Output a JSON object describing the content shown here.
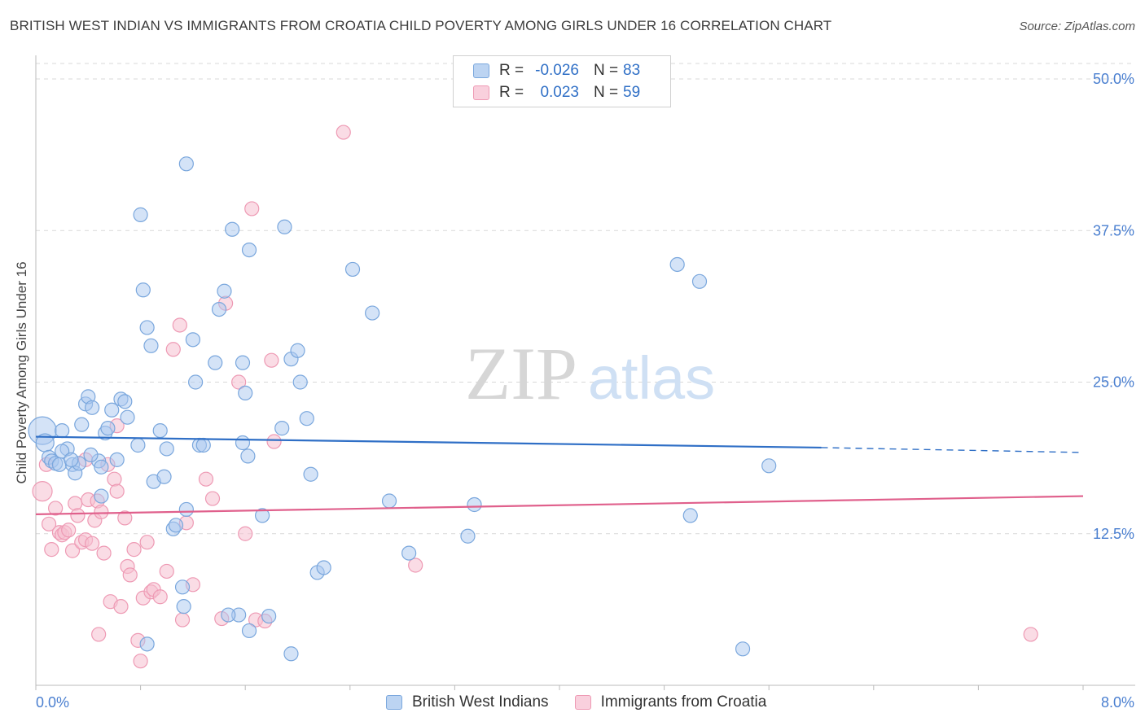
{
  "header": {
    "title": "BRITISH WEST INDIAN VS IMMIGRANTS FROM CROATIA CHILD POVERTY AMONG GIRLS UNDER 16 CORRELATION CHART",
    "source": "Source: ZipAtlas.com"
  },
  "watermark": {
    "zip": "ZIP",
    "atlas": "atlas"
  },
  "legend": {
    "rows": [
      {
        "r_label": "R =",
        "r_value": "-0.026",
        "n_label": "N =",
        "n_value": "83"
      },
      {
        "r_label": "R =",
        "r_value": "0.023",
        "n_label": "N =",
        "n_value": "59"
      }
    ]
  },
  "bottom_legend": {
    "series1": "British West Indians",
    "series2": "Immigrants from Croatia"
  },
  "colors": {
    "blue_fill": "#a9c8ef",
    "blue_stroke": "#7aa7dd",
    "blue_line": "#2f6fc6",
    "pink_fill": "#f6bfd0",
    "pink_stroke": "#ee9ab4",
    "pink_line": "#e0608c",
    "tick_label": "#4a7fd0",
    "grid": "#d9d9d9",
    "axis_text": "#4a7fd0"
  },
  "chart_data": {
    "type": "scatter",
    "title": "BRITISH WEST INDIAN VS IMMIGRANTS FROM CROATIA CHILD POVERTY AMONG GIRLS UNDER 16 CORRELATION CHART",
    "xlabel": "",
    "ylabel": "Child Poverty Among Girls Under 16",
    "xlim": [
      0,
      8
    ],
    "ylim": [
      0,
      50
    ],
    "x_tick_labels": [
      "0.0%",
      "8.0%"
    ],
    "y_ticks": [
      12.5,
      25.0,
      37.5,
      50.0
    ],
    "y_tick_labels": [
      "12.5%",
      "25.0%",
      "37.5%",
      "50.0%"
    ],
    "grid": true,
    "legend_placement": "top-center",
    "series": [
      {
        "name": "British West Indians",
        "R": -0.026,
        "N": 83,
        "trend": {
          "x0": 0,
          "y0": 20.5,
          "x1": 6.0,
          "y1": 19.6,
          "x_dash_end": 8.0,
          "y_dash_end": 19.2
        },
        "points": [
          [
            0.05,
            21.0
          ],
          [
            0.07,
            20.0
          ],
          [
            0.1,
            18.8
          ],
          [
            0.12,
            18.5
          ],
          [
            0.15,
            18.3
          ],
          [
            0.18,
            18.2
          ],
          [
            0.2,
            21.0
          ],
          [
            0.24,
            19.5
          ],
          [
            0.28,
            18.2
          ],
          [
            0.3,
            17.5
          ],
          [
            0.33,
            18.3
          ],
          [
            0.38,
            23.2
          ],
          [
            0.4,
            23.8
          ],
          [
            0.43,
            22.9
          ],
          [
            0.48,
            18.5
          ],
          [
            0.5,
            18.0
          ],
          [
            0.53,
            20.8
          ],
          [
            0.55,
            21.2
          ],
          [
            0.58,
            22.7
          ],
          [
            0.62,
            18.6
          ],
          [
            0.65,
            23.6
          ],
          [
            0.68,
            23.4
          ],
          [
            0.8,
            38.8
          ],
          [
            0.82,
            32.6
          ],
          [
            0.85,
            29.5
          ],
          [
            0.88,
            28.0
          ],
          [
            0.95,
            21.0
          ],
          [
            0.78,
            19.8
          ],
          [
            0.9,
            16.8
          ],
          [
            0.98,
            17.2
          ],
          [
            1.0,
            19.5
          ],
          [
            1.05,
            12.9
          ],
          [
            1.07,
            13.2
          ],
          [
            1.15,
            14.5
          ],
          [
            1.12,
            8.1
          ],
          [
            1.13,
            6.5
          ],
          [
            1.2,
            28.5
          ],
          [
            1.22,
            25.0
          ],
          [
            1.25,
            19.8
          ],
          [
            1.28,
            19.8
          ],
          [
            1.15,
            43.0
          ],
          [
            1.37,
            26.6
          ],
          [
            1.4,
            31.0
          ],
          [
            1.44,
            32.5
          ],
          [
            1.5,
            37.6
          ],
          [
            1.58,
            26.6
          ],
          [
            1.6,
            24.1
          ],
          [
            1.63,
            35.9
          ],
          [
            1.58,
            20.0
          ],
          [
            1.62,
            18.9
          ],
          [
            1.73,
            14.0
          ],
          [
            1.55,
            5.8
          ],
          [
            1.63,
            4.5
          ],
          [
            1.9,
            37.8
          ],
          [
            1.88,
            21.2
          ],
          [
            1.95,
            26.9
          ],
          [
            2.0,
            27.6
          ],
          [
            2.02,
            25.0
          ],
          [
            2.07,
            22.0
          ],
          [
            2.1,
            17.4
          ],
          [
            2.15,
            9.3
          ],
          [
            2.2,
            9.7
          ],
          [
            2.42,
            34.3
          ],
          [
            2.57,
            30.7
          ],
          [
            2.7,
            15.2
          ],
          [
            2.85,
            10.9
          ],
          [
            3.3,
            12.3
          ],
          [
            3.35,
            14.9
          ],
          [
            4.9,
            34.7
          ],
          [
            5.07,
            33.3
          ],
          [
            5.0,
            14.0
          ],
          [
            5.6,
            18.1
          ],
          [
            5.4,
            3.0
          ],
          [
            0.7,
            22.1
          ],
          [
            0.5,
            15.6
          ],
          [
            0.35,
            21.5
          ],
          [
            0.2,
            19.3
          ],
          [
            0.42,
            19.0
          ],
          [
            1.47,
            5.8
          ],
          [
            1.95,
            2.6
          ],
          [
            1.78,
            5.7
          ],
          [
            0.27,
            18.6
          ],
          [
            0.85,
            3.4
          ]
        ]
      },
      {
        "name": "Immigrants from Croatia",
        "R": 0.023,
        "N": 59,
        "trend": {
          "x0": 0,
          "y0": 14.1,
          "x1": 8.0,
          "y1": 15.6
        },
        "points": [
          [
            0.05,
            16.0
          ],
          [
            0.08,
            18.2
          ],
          [
            0.1,
            13.3
          ],
          [
            0.12,
            11.2
          ],
          [
            0.15,
            14.6
          ],
          [
            0.18,
            12.6
          ],
          [
            0.2,
            12.4
          ],
          [
            0.22,
            12.6
          ],
          [
            0.25,
            12.8
          ],
          [
            0.28,
            11.1
          ],
          [
            0.3,
            15.0
          ],
          [
            0.32,
            14.0
          ],
          [
            0.35,
            11.8
          ],
          [
            0.38,
            12.0
          ],
          [
            0.4,
            15.3
          ],
          [
            0.43,
            11.7
          ],
          [
            0.45,
            13.6
          ],
          [
            0.47,
            15.2
          ],
          [
            0.5,
            14.3
          ],
          [
            0.52,
            10.9
          ],
          [
            0.55,
            18.2
          ],
          [
            0.57,
            6.9
          ],
          [
            0.6,
            17.0
          ],
          [
            0.62,
            16.0
          ],
          [
            0.65,
            6.5
          ],
          [
            0.68,
            13.8
          ],
          [
            0.7,
            9.8
          ],
          [
            0.72,
            9.1
          ],
          [
            0.75,
            11.2
          ],
          [
            0.78,
            3.7
          ],
          [
            0.8,
            2.0
          ],
          [
            0.82,
            7.2
          ],
          [
            0.85,
            11.8
          ],
          [
            0.88,
            7.7
          ],
          [
            0.9,
            7.9
          ],
          [
            0.95,
            7.3
          ],
          [
            1.0,
            9.4
          ],
          [
            1.05,
            27.7
          ],
          [
            1.1,
            29.7
          ],
          [
            1.12,
            5.4
          ],
          [
            1.15,
            13.4
          ],
          [
            1.2,
            8.3
          ],
          [
            1.3,
            17.0
          ],
          [
            1.35,
            15.4
          ],
          [
            1.42,
            5.5
          ],
          [
            1.45,
            31.5
          ],
          [
            1.6,
            12.5
          ],
          [
            1.55,
            25.0
          ],
          [
            1.68,
            5.4
          ],
          [
            1.75,
            5.3
          ],
          [
            1.8,
            26.8
          ],
          [
            1.82,
            20.1
          ],
          [
            1.65,
            39.3
          ],
          [
            2.35,
            45.6
          ],
          [
            2.9,
            9.9
          ],
          [
            7.6,
            4.2
          ],
          [
            0.62,
            21.4
          ],
          [
            0.38,
            18.6
          ],
          [
            0.48,
            4.2
          ]
        ]
      }
    ]
  }
}
